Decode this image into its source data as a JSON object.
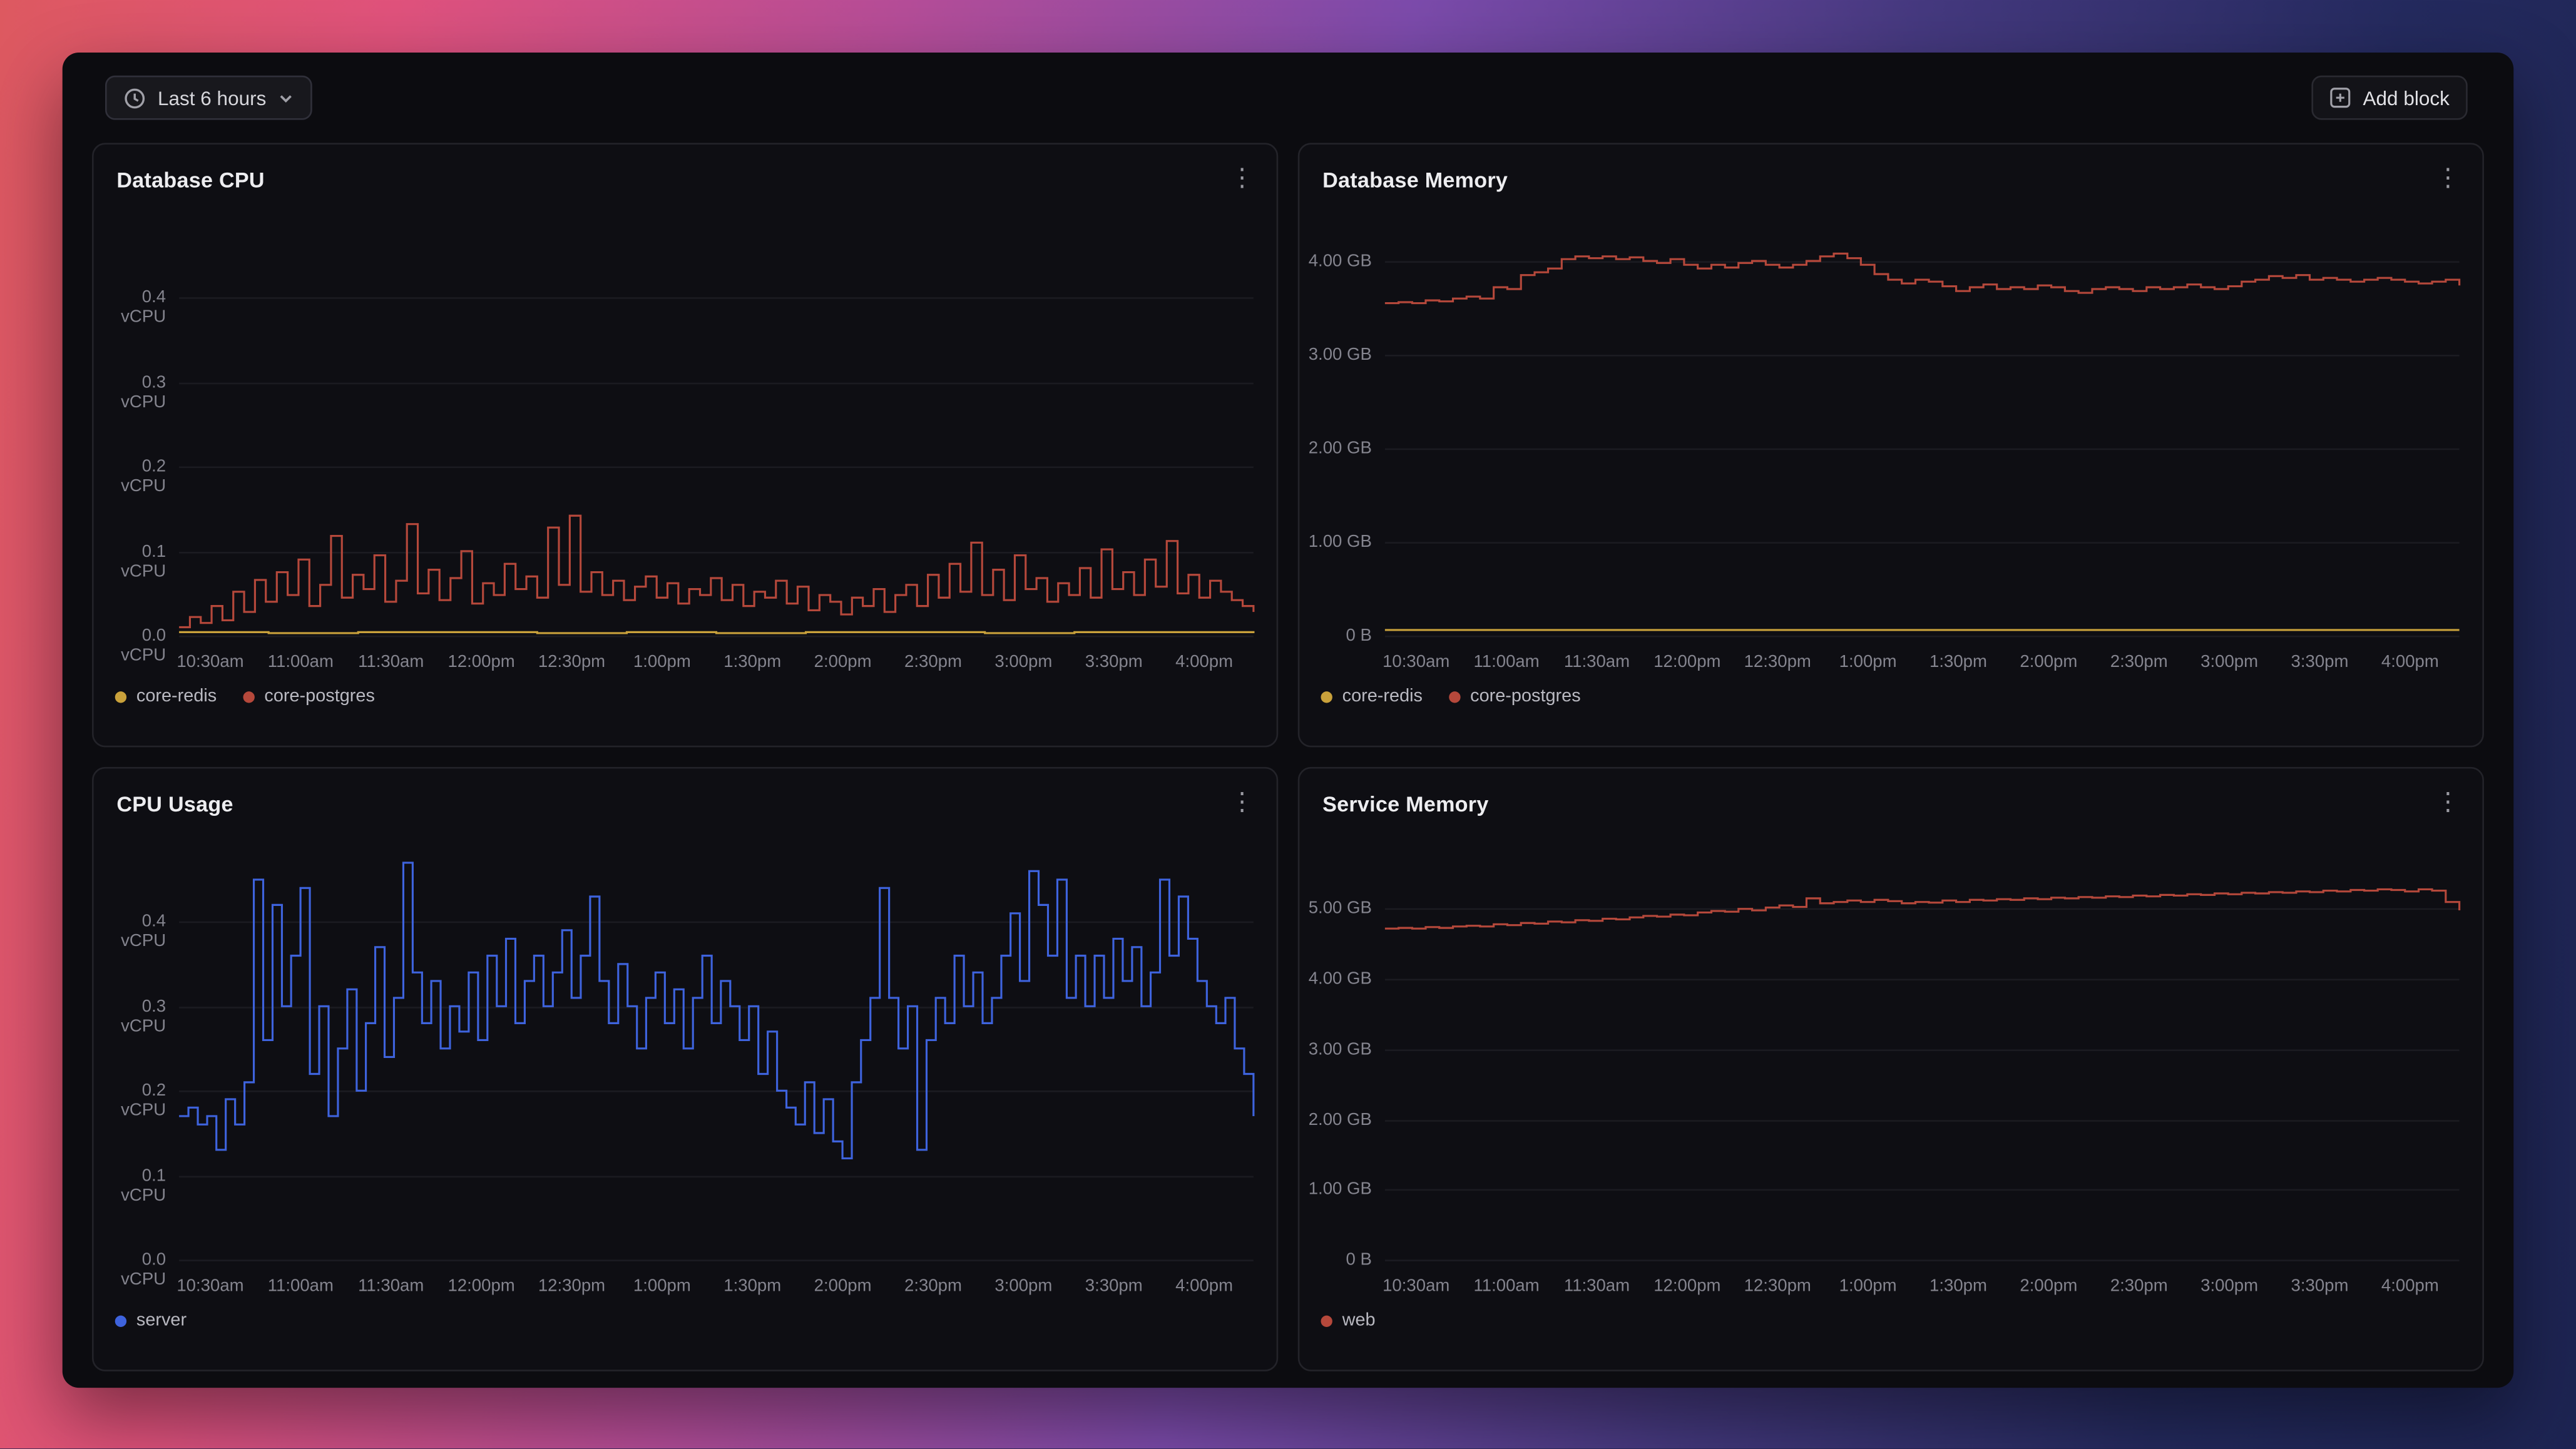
{
  "toolbar": {
    "time_range_label": "Last 6 hours",
    "add_block_label": "Add block"
  },
  "colors": {
    "red": "#b5483b",
    "yellow": "#c9a13b",
    "blue": "#3e63dd"
  },
  "chart_data": [
    {
      "type": "line",
      "title": "Database CPU",
      "ylim": [
        0,
        0.49
      ],
      "y_ticks": [
        {
          "value": 0.0,
          "label": "0.0 vCPU"
        },
        {
          "value": 0.1,
          "label": "0.1 vCPU"
        },
        {
          "value": 0.2,
          "label": "0.2 vCPU"
        },
        {
          "value": 0.3,
          "label": "0.3 vCPU"
        },
        {
          "value": 0.4,
          "label": "0.4 vCPU"
        }
      ],
      "x_tick_labels": [
        "10:30am",
        "11:00am",
        "11:30am",
        "12:00pm",
        "12:30pm",
        "1:00pm",
        "1:30pm",
        "2:00pm",
        "2:30pm",
        "3:00pm",
        "3:30pm",
        "4:00pm"
      ],
      "series": [
        {
          "name": "core-redis",
          "color": "#c9a13b",
          "values": [
            0.004,
            0.003,
            0.004,
            0.004,
            0.003,
            0.004,
            0.003,
            0.004,
            0.004,
            0.003,
            0.004,
            0.004,
            0.003
          ]
        },
        {
          "name": "core-postgres",
          "color": "#b5483b",
          "values": [
            0.01,
            0.022,
            0.015,
            0.035,
            0.018,
            0.052,
            0.028,
            0.066,
            0.04,
            0.075,
            0.048,
            0.09,
            0.035,
            0.06,
            0.118,
            0.045,
            0.072,
            0.055,
            0.095,
            0.04,
            0.065,
            0.132,
            0.05,
            0.078,
            0.042,
            0.068,
            0.1,
            0.038,
            0.062,
            0.048,
            0.085,
            0.055,
            0.07,
            0.045,
            0.128,
            0.06,
            0.142,
            0.052,
            0.075,
            0.048,
            0.065,
            0.042,
            0.058,
            0.07,
            0.045,
            0.062,
            0.038,
            0.055,
            0.048,
            0.068,
            0.042,
            0.06,
            0.035,
            0.052,
            0.045,
            0.065,
            0.038,
            0.058,
            0.03,
            0.048,
            0.04,
            0.025,
            0.045,
            0.035,
            0.055,
            0.028,
            0.048,
            0.06,
            0.035,
            0.072,
            0.045,
            0.085,
            0.052,
            0.11,
            0.048,
            0.078,
            0.042,
            0.095,
            0.055,
            0.068,
            0.04,
            0.062,
            0.048,
            0.08,
            0.045,
            0.102,
            0.055,
            0.075,
            0.048,
            0.09,
            0.058,
            0.112,
            0.05,
            0.072,
            0.045,
            0.065,
            0.052,
            0.042,
            0.035,
            0.028
          ]
        }
      ]
    },
    {
      "type": "line",
      "title": "Database Memory",
      "ylim": [
        0,
        4.42
      ],
      "y_ticks": [
        {
          "value": 0,
          "label": "0 B"
        },
        {
          "value": 1,
          "label": "1.00 GB"
        },
        {
          "value": 2,
          "label": "2.00 GB"
        },
        {
          "value": 3,
          "label": "3.00 GB"
        },
        {
          "value": 4,
          "label": "4.00 GB"
        }
      ],
      "x_tick_labels": [
        "10:30am",
        "11:00am",
        "11:30am",
        "12:00pm",
        "12:30pm",
        "1:00pm",
        "1:30pm",
        "2:00pm",
        "2:30pm",
        "3:00pm",
        "3:30pm",
        "4:00pm"
      ],
      "series": [
        {
          "name": "core-redis",
          "color": "#c9a13b",
          "values": [
            0.06,
            0.06,
            0.06,
            0.06,
            0.06,
            0.06,
            0.06,
            0.06,
            0.06,
            0.06,
            0.06,
            0.06,
            0.06
          ]
        },
        {
          "name": "core-postgres",
          "color": "#b5483b",
          "values": [
            3.55,
            3.56,
            3.55,
            3.58,
            3.57,
            3.6,
            3.62,
            3.6,
            3.72,
            3.7,
            3.85,
            3.88,
            3.92,
            4.02,
            4.05,
            4.03,
            4.05,
            4.02,
            4.04,
            4.0,
            3.98,
            4.02,
            3.96,
            3.92,
            3.96,
            3.93,
            3.98,
            4.0,
            3.96,
            3.93,
            3.96,
            4.0,
            4.05,
            4.08,
            4.03,
            3.96,
            3.86,
            3.8,
            3.76,
            3.8,
            3.78,
            3.73,
            3.68,
            3.72,
            3.75,
            3.7,
            3.72,
            3.7,
            3.74,
            3.72,
            3.68,
            3.66,
            3.7,
            3.72,
            3.7,
            3.68,
            3.72,
            3.7,
            3.72,
            3.75,
            3.72,
            3.7,
            3.73,
            3.78,
            3.8,
            3.84,
            3.82,
            3.85,
            3.8,
            3.82,
            3.8,
            3.78,
            3.8,
            3.82,
            3.8,
            3.78,
            3.76,
            3.78,
            3.8,
            3.74
          ]
        }
      ]
    },
    {
      "type": "line",
      "title": "CPU Usage",
      "ylim": [
        0,
        0.49
      ],
      "y_ticks": [
        {
          "value": 0.0,
          "label": "0.0 vCPU"
        },
        {
          "value": 0.1,
          "label": "0.1 vCPU"
        },
        {
          "value": 0.2,
          "label": "0.2 vCPU"
        },
        {
          "value": 0.3,
          "label": "0.3 vCPU"
        },
        {
          "value": 0.4,
          "label": "0.4 vCPU"
        }
      ],
      "x_tick_labels": [
        "10:30am",
        "11:00am",
        "11:30am",
        "12:00pm",
        "12:30pm",
        "1:00pm",
        "1:30pm",
        "2:00pm",
        "2:30pm",
        "3:00pm",
        "3:30pm",
        "4:00pm"
      ],
      "series": [
        {
          "name": "server",
          "color": "#3e63dd",
          "values": [
            0.17,
            0.18,
            0.16,
            0.17,
            0.13,
            0.19,
            0.16,
            0.21,
            0.45,
            0.26,
            0.42,
            0.3,
            0.36,
            0.44,
            0.22,
            0.3,
            0.17,
            0.25,
            0.32,
            0.2,
            0.28,
            0.37,
            0.24,
            0.31,
            0.47,
            0.34,
            0.28,
            0.33,
            0.25,
            0.3,
            0.27,
            0.34,
            0.26,
            0.36,
            0.3,
            0.38,
            0.28,
            0.33,
            0.36,
            0.3,
            0.34,
            0.39,
            0.31,
            0.36,
            0.43,
            0.33,
            0.28,
            0.35,
            0.3,
            0.25,
            0.31,
            0.34,
            0.28,
            0.32,
            0.25,
            0.31,
            0.36,
            0.28,
            0.33,
            0.3,
            0.26,
            0.3,
            0.22,
            0.27,
            0.2,
            0.18,
            0.16,
            0.21,
            0.15,
            0.19,
            0.14,
            0.12,
            0.21,
            0.26,
            0.31,
            0.44,
            0.31,
            0.25,
            0.3,
            0.13,
            0.26,
            0.31,
            0.28,
            0.36,
            0.3,
            0.34,
            0.28,
            0.31,
            0.36,
            0.41,
            0.33,
            0.46,
            0.42,
            0.36,
            0.45,
            0.31,
            0.36,
            0.3,
            0.36,
            0.31,
            0.38,
            0.33,
            0.37,
            0.3,
            0.34,
            0.45,
            0.36,
            0.43,
            0.38,
            0.33,
            0.3,
            0.28,
            0.31,
            0.25,
            0.22,
            0.17
          ]
        }
      ]
    },
    {
      "type": "line",
      "title": "Service Memory",
      "ylim": [
        0,
        5.9
      ],
      "y_ticks": [
        {
          "value": 0,
          "label": "0 B"
        },
        {
          "value": 1,
          "label": "1.00 GB"
        },
        {
          "value": 2,
          "label": "2.00 GB"
        },
        {
          "value": 3,
          "label": "3.00 GB"
        },
        {
          "value": 4,
          "label": "4.00 GB"
        },
        {
          "value": 5,
          "label": "5.00 GB"
        }
      ],
      "x_tick_labels": [
        "10:30am",
        "11:00am",
        "11:30am",
        "12:00pm",
        "12:30pm",
        "1:00pm",
        "1:30pm",
        "2:00pm",
        "2:30pm",
        "3:00pm",
        "3:30pm",
        "4:00pm"
      ],
      "series": [
        {
          "name": "web",
          "color": "#b5483b",
          "values": [
            4.72,
            4.73,
            4.72,
            4.74,
            4.73,
            4.75,
            4.76,
            4.75,
            4.78,
            4.77,
            4.8,
            4.79,
            4.82,
            4.81,
            4.84,
            4.83,
            4.86,
            4.85,
            4.88,
            4.9,
            4.89,
            4.92,
            4.91,
            4.95,
            4.97,
            4.96,
            5.0,
            4.98,
            5.02,
            5.05,
            5.03,
            5.15,
            5.08,
            5.1,
            5.12,
            5.1,
            5.13,
            5.11,
            5.08,
            5.1,
            5.09,
            5.12,
            5.1,
            5.13,
            5.12,
            5.14,
            5.13,
            5.15,
            5.14,
            5.16,
            5.15,
            5.17,
            5.16,
            5.18,
            5.17,
            5.19,
            5.18,
            5.2,
            5.19,
            5.21,
            5.2,
            5.22,
            5.21,
            5.23,
            5.22,
            5.24,
            5.23,
            5.25,
            5.24,
            5.26,
            5.25,
            5.27,
            5.26,
            5.28,
            5.27,
            5.25,
            5.28,
            5.26,
            5.1,
            4.98
          ]
        }
      ]
    }
  ]
}
